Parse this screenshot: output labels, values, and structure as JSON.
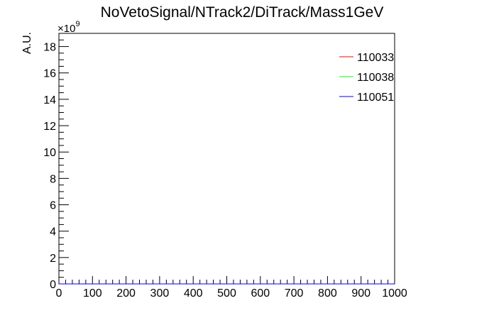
{
  "chart_data": {
    "type": "line",
    "title": "NoVetoSignal/NTrack2/DiTrack/Mass1GeV",
    "xlabel": "",
    "ylabel": "A.U.",
    "y_exponent_base": "×10",
    "y_exponent_power": "9",
    "xlim": [
      0,
      1000
    ],
    "ylim": [
      0,
      19
    ],
    "x_ticks": [
      0,
      100,
      200,
      300,
      400,
      500,
      600,
      700,
      800,
      900,
      1000
    ],
    "y_ticks": [
      0,
      2,
      4,
      6,
      8,
      10,
      12,
      14,
      16,
      18
    ],
    "grid": false,
    "legend_position": "top-right",
    "series": [
      {
        "name": "110033",
        "color": "#ff0000",
        "x": [
          0,
          1000
        ],
        "y": [
          0,
          0
        ]
      },
      {
        "name": "110038",
        "color": "#00ff00",
        "x": [
          0,
          1000
        ],
        "y": [
          0,
          0
        ]
      },
      {
        "name": "110051",
        "color": "#0000ff",
        "x": [
          0,
          1000
        ],
        "y": [
          0,
          0
        ]
      }
    ]
  }
}
